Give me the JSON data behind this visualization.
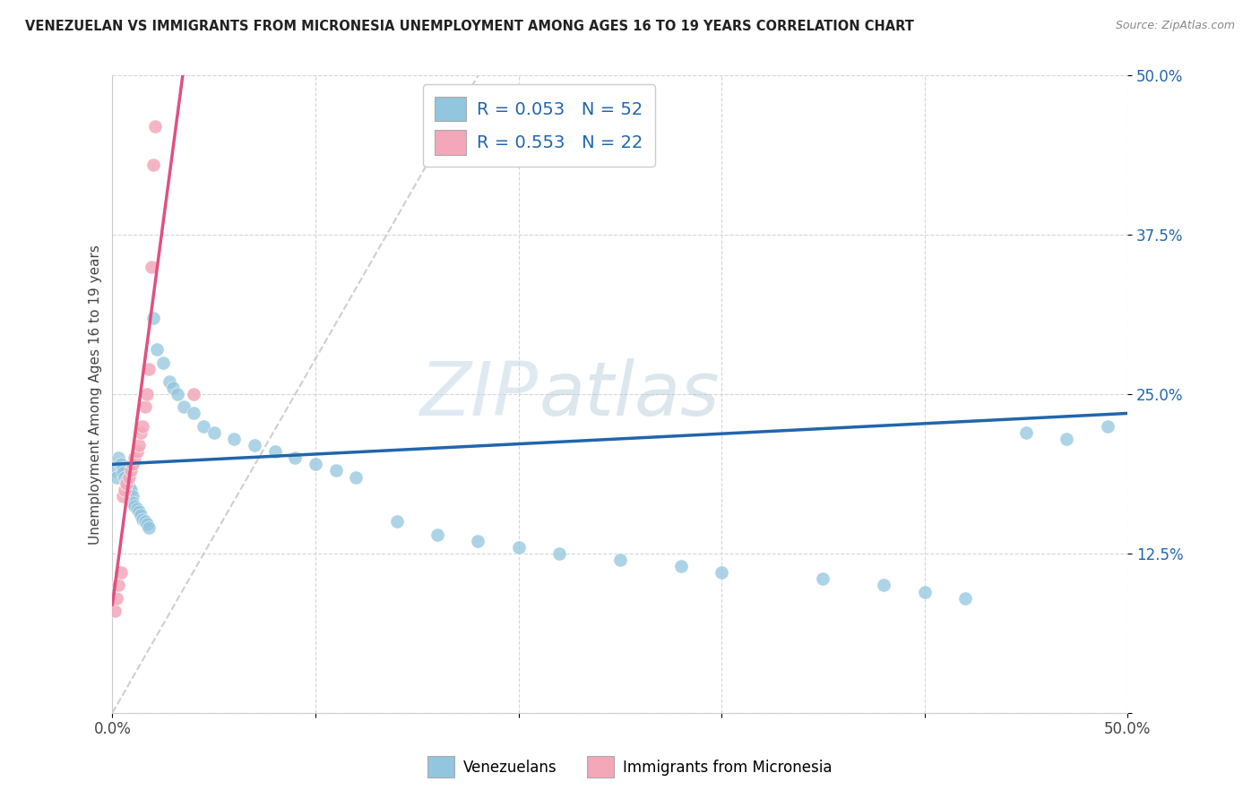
{
  "title": "VENEZUELAN VS IMMIGRANTS FROM MICRONESIA UNEMPLOYMENT AMONG AGES 16 TO 19 YEARS CORRELATION CHART",
  "source": "Source: ZipAtlas.com",
  "ylabel": "Unemployment Among Ages 16 to 19 years",
  "legend_label1": "Venezuelans",
  "legend_label2": "Immigrants from Micronesia",
  "r1": "0.053",
  "n1": "52",
  "r2": "0.553",
  "n2": "22",
  "blue_color": "#92c5de",
  "pink_color": "#f4a7b9",
  "blue_line_color": "#2166ac",
  "pink_line_color": "#e05080",
  "dash_line_color": "#bbbbbb",
  "watermark_zip": "ZIP",
  "watermark_atlas": "atlas",
  "xlim": [
    0.0,
    0.5
  ],
  "ylim": [
    0.0,
    0.5
  ],
  "blue_scatter_x": [
    0.001,
    0.002,
    0.003,
    0.004,
    0.005,
    0.005,
    0.006,
    0.007,
    0.008,
    0.009,
    0.01,
    0.01,
    0.011,
    0.012,
    0.013,
    0.014,
    0.015,
    0.016,
    0.017,
    0.018,
    0.02,
    0.022,
    0.025,
    0.028,
    0.03,
    0.032,
    0.035,
    0.04,
    0.045,
    0.05,
    0.06,
    0.07,
    0.08,
    0.09,
    0.1,
    0.11,
    0.12,
    0.14,
    0.16,
    0.18,
    0.2,
    0.22,
    0.25,
    0.28,
    0.3,
    0.35,
    0.38,
    0.4,
    0.42,
    0.45,
    0.47,
    0.49
  ],
  "blue_scatter_y": [
    0.19,
    0.185,
    0.2,
    0.195,
    0.192,
    0.188,
    0.185,
    0.182,
    0.178,
    0.175,
    0.17,
    0.165,
    0.162,
    0.16,
    0.158,
    0.155,
    0.152,
    0.15,
    0.148,
    0.145,
    0.31,
    0.285,
    0.275,
    0.26,
    0.255,
    0.25,
    0.24,
    0.235,
    0.225,
    0.22,
    0.215,
    0.21,
    0.205,
    0.2,
    0.195,
    0.19,
    0.185,
    0.15,
    0.14,
    0.135,
    0.13,
    0.125,
    0.12,
    0.115,
    0.11,
    0.105,
    0.1,
    0.095,
    0.09,
    0.22,
    0.215,
    0.225
  ],
  "pink_scatter_x": [
    0.001,
    0.002,
    0.003,
    0.004,
    0.005,
    0.006,
    0.007,
    0.008,
    0.009,
    0.01,
    0.011,
    0.012,
    0.013,
    0.014,
    0.015,
    0.016,
    0.017,
    0.018,
    0.019,
    0.02,
    0.021,
    0.04
  ],
  "pink_scatter_y": [
    0.08,
    0.09,
    0.1,
    0.11,
    0.17,
    0.175,
    0.18,
    0.185,
    0.19,
    0.195,
    0.2,
    0.205,
    0.21,
    0.22,
    0.225,
    0.24,
    0.25,
    0.27,
    0.35,
    0.43,
    0.46,
    0.25
  ]
}
